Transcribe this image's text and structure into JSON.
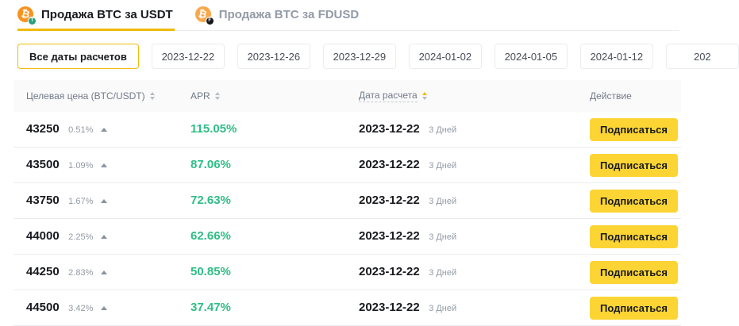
{
  "colors": {
    "accent_yellow": "#FCD535",
    "tab_underline_yellow": "#F0B90B",
    "apr_green": "#2EBD85",
    "text_dark": "#181A1F",
    "text_gray": "#707A8A",
    "border_gray": "#EAECEF",
    "header_bg": "#FAFAFA",
    "btc_orange": "#F8921F",
    "usdt_teal": "#26A17B",
    "fdusd_black": "#17181C"
  },
  "icons": {
    "btc_symbol": "₿",
    "usdt_badge_glyph": "T",
    "fdusd_badge_glyph": "F"
  },
  "tabs": [
    {
      "label": "Продажа BTC за USDT",
      "active": true,
      "icon": "btc-usdt-icon"
    },
    {
      "label": "Продажа BTC за FDUSD",
      "active": false,
      "icon": "btc-fdusd-icon"
    }
  ],
  "filters": [
    {
      "label": "Все даты расчетов",
      "active": true
    },
    {
      "label": "2023-12-22",
      "active": false
    },
    {
      "label": "2023-12-26",
      "active": false
    },
    {
      "label": "2023-12-29",
      "active": false
    },
    {
      "label": "2024-01-02",
      "active": false
    },
    {
      "label": "2024-01-05",
      "active": false
    },
    {
      "label": "2024-01-12",
      "active": false
    },
    {
      "label": "202",
      "active": false,
      "clipped": true
    }
  ],
  "table": {
    "headers": {
      "target_price": "Целевая цена (BTC/USDT)",
      "apr": "APR",
      "settlement_date": "Дата расчета",
      "action": "Действие"
    },
    "rows": [
      {
        "price": "43250",
        "change": "0.51%",
        "apr": "115.05%",
        "date": "2023-12-22",
        "duration": "3 Дней",
        "action": "Подписаться"
      },
      {
        "price": "43500",
        "change": "1.09%",
        "apr": "87.06%",
        "date": "2023-12-22",
        "duration": "3 Дней",
        "action": "Подписаться"
      },
      {
        "price": "43750",
        "change": "1.67%",
        "apr": "72.63%",
        "date": "2023-12-22",
        "duration": "3 Дней",
        "action": "Подписаться"
      },
      {
        "price": "44000",
        "change": "2.25%",
        "apr": "62.66%",
        "date": "2023-12-22",
        "duration": "3 Дней",
        "action": "Подписаться"
      },
      {
        "price": "44250",
        "change": "2.83%",
        "apr": "50.85%",
        "date": "2023-12-22",
        "duration": "3 Дней",
        "action": "Подписаться"
      },
      {
        "price": "44500",
        "change": "3.42%",
        "apr": "37.47%",
        "date": "2023-12-22",
        "duration": "3 Дней",
        "action": "Подписаться"
      }
    ]
  }
}
